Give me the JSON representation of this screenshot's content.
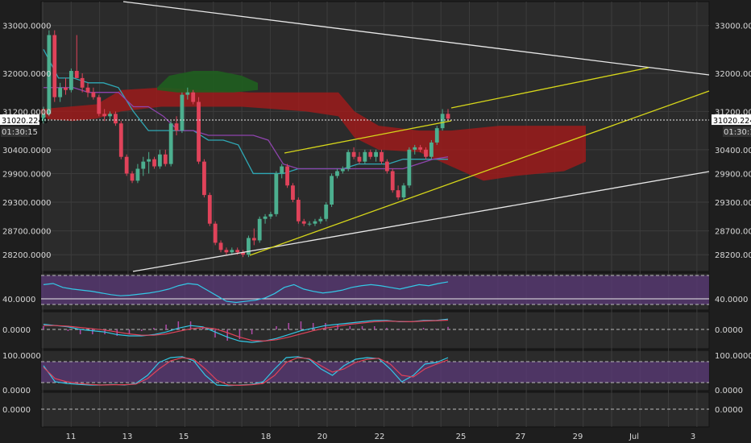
{
  "colors": {
    "background": "#2b2b2b",
    "frame": "#1e1e1e",
    "grid": "#3c3c3c",
    "bull_candle": "#4caf8f",
    "bear_candle": "#e0435a",
    "cloud_bear": "#9c1b1b",
    "cloud_bull": "#1f5e1f",
    "kijun": "#2fa8b5",
    "tenkan": "#8e44ad",
    "trend_white": "#e8e8e8",
    "trend_yellow": "#d6d61a",
    "rsi_line": "#33c8e6",
    "indicator_band": "#5b3a78",
    "stoch_k": "#33c8e6",
    "stoch_d": "#e0435a",
    "macd_line": "#33c8e6",
    "macd_signal": "#e0435a",
    "macd_hist": "#b04aa8"
  },
  "price_axis": {
    "labels_left": [
      "33000.0000",
      "32000.0000",
      "31200.0000",
      "30400.0000",
      "29900.0000",
      "29300.0000",
      "28700.0000",
      "28200.0000"
    ],
    "labels_right": [
      "33000.0000",
      "32000.0000",
      "31200.0000",
      "30400.0000",
      "29900.0000",
      "29300.0000",
      "28700.0000",
      "28200.0000"
    ],
    "current_price_label": "31020.2240",
    "countdown_label": "01:30:15"
  },
  "indicator_axes": {
    "rsi_label_left": "40.0000",
    "rsi_label_right": "40.0000",
    "macd_label_left": "0.0000",
    "macd_label_right": "0.0000",
    "stoch_top_left": "100.0000",
    "stoch_top_right": "100.0000",
    "stoch_bottom_left": "0.0000",
    "stoch_bottom_right": "0.0000",
    "blank_label_left": "0.0000",
    "blank_label_right": "0.0000"
  },
  "date_axis": {
    "labels": [
      "11",
      "13",
      "15",
      "18",
      "20",
      "22",
      "25",
      "27",
      "29",
      "Jul",
      "3"
    ]
  },
  "chart_data": {
    "type": "candlestick",
    "ylim": [
      27900,
      33400
    ],
    "current_price": 31020.224,
    "candles": [
      [
        31000,
        31300,
        30950,
        31150
      ],
      [
        31150,
        32900,
        31100,
        32800
      ],
      [
        32800,
        32900,
        31400,
        31500
      ],
      [
        31500,
        31800,
        31400,
        31700
      ],
      [
        31700,
        31900,
        31550,
        31650
      ],
      [
        31650,
        32100,
        31600,
        32050
      ],
      [
        32050,
        32800,
        31900,
        31900
      ],
      [
        31900,
        32000,
        31600,
        31700
      ],
      [
        31700,
        31800,
        31500,
        31600
      ],
      [
        31600,
        31700,
        31450,
        31500
      ],
      [
        31500,
        31550,
        31100,
        31150
      ],
      [
        31150,
        31250,
        31000,
        31100
      ],
      [
        31100,
        31200,
        31000,
        31150
      ],
      [
        31150,
        31200,
        30900,
        30950
      ],
      [
        30950,
        31000,
        30200,
        30250
      ],
      [
        30250,
        30300,
        29850,
        29900
      ],
      [
        29900,
        29950,
        29700,
        29750
      ],
      [
        29750,
        30100,
        29700,
        30000
      ],
      [
        30000,
        30250,
        29850,
        30150
      ],
      [
        30150,
        30350,
        29900,
        30200
      ],
      [
        30200,
        30250,
        30000,
        30050
      ],
      [
        30050,
        30400,
        30000,
        30300
      ],
      [
        30300,
        30400,
        30050,
        30100
      ],
      [
        30100,
        31000,
        30050,
        30950
      ],
      [
        30950,
        31100,
        30700,
        30800
      ],
      [
        30800,
        31600,
        30750,
        31550
      ],
      [
        31550,
        31700,
        31450,
        31600
      ],
      [
        31600,
        31650,
        31350,
        31400
      ],
      [
        31400,
        31500,
        30100,
        30150
      ],
      [
        30150,
        30200,
        29400,
        29450
      ],
      [
        29450,
        29500,
        28800,
        28850
      ],
      [
        28850,
        28900,
        28400,
        28450
      ],
      [
        28450,
        28500,
        28250,
        28300
      ],
      [
        28300,
        28350,
        28200,
        28250
      ],
      [
        28250,
        28350,
        28200,
        28300
      ],
      [
        28300,
        28350,
        28200,
        28250
      ],
      [
        28250,
        28300,
        28150,
        28200
      ],
      [
        28200,
        28600,
        28150,
        28550
      ],
      [
        28550,
        28750,
        28400,
        28500
      ],
      [
        28500,
        29000,
        28450,
        28950
      ],
      [
        28950,
        29050,
        28850,
        29000
      ],
      [
        29000,
        29100,
        28950,
        29050
      ],
      [
        29050,
        29950,
        29000,
        29900
      ],
      [
        29900,
        30100,
        29800,
        30050
      ],
      [
        30050,
        30100,
        29600,
        29650
      ],
      [
        29650,
        29700,
        29300,
        29350
      ],
      [
        29350,
        29400,
        28850,
        28900
      ],
      [
        28900,
        28950,
        28800,
        28850
      ],
      [
        28850,
        28900,
        28800,
        28850
      ],
      [
        28850,
        28950,
        28800,
        28900
      ],
      [
        28900,
        29000,
        28850,
        28950
      ],
      [
        28950,
        29300,
        28900,
        29250
      ],
      [
        29250,
        29900,
        29200,
        29850
      ],
      [
        29850,
        30000,
        29800,
        29950
      ],
      [
        29950,
        30050,
        29900,
        30000
      ],
      [
        30000,
        30400,
        29950,
        30350
      ],
      [
        30350,
        30450,
        30200,
        30250
      ],
      [
        30250,
        30350,
        30100,
        30150
      ],
      [
        30150,
        30400,
        30100,
        30350
      ],
      [
        30350,
        30400,
        30200,
        30250
      ],
      [
        30250,
        30400,
        30150,
        30350
      ],
      [
        30350,
        30400,
        30100,
        30150
      ],
      [
        30150,
        30200,
        29900,
        29950
      ],
      [
        29950,
        30000,
        29500,
        29550
      ],
      [
        29550,
        29650,
        29350,
        29400
      ],
      [
        29400,
        29700,
        29350,
        29650
      ],
      [
        29650,
        30450,
        29600,
        30400
      ],
      [
        30400,
        30500,
        30300,
        30450
      ],
      [
        30450,
        30500,
        30350,
        30400
      ],
      [
        30400,
        30450,
        30200,
        30250
      ],
      [
        30250,
        30600,
        30200,
        30550
      ],
      [
        30550,
        30900,
        30500,
        30850
      ],
      [
        30850,
        31250,
        30800,
        31150
      ],
      [
        31150,
        31250,
        31000,
        31050
      ]
    ],
    "kijun": [
      32500,
      31900,
      31900,
      31800,
      31800,
      31700,
      31200,
      30800,
      30800,
      30800,
      30800,
      30600,
      30600,
      30500,
      29900,
      29900,
      29900,
      30000,
      30000,
      30000,
      30000,
      30100,
      30100,
      30100,
      30200,
      30200,
      30200,
      30200
    ],
    "tenkan": [
      31700,
      31700,
      31700,
      31600,
      31600,
      31600,
      31300,
      31300,
      31100,
      30800,
      30800,
      30700,
      30700,
      30700,
      30700,
      30600,
      30100,
      30000,
      30000,
      30000,
      30000,
      30000,
      30000,
      30000,
      30000,
      30100,
      30200,
      30250
    ],
    "rsi": [
      60,
      62,
      55,
      52,
      50,
      48,
      45,
      42,
      40,
      41,
      43,
      45,
      48,
      52,
      58,
      62,
      60,
      50,
      40,
      30,
      28,
      30,
      32,
      36,
      44,
      55,
      60,
      52,
      48,
      45,
      47,
      50,
      55,
      58,
      60,
      58,
      55,
      52,
      56,
      60,
      58,
      62,
      65
    ],
    "stoch_k": [
      70,
      20,
      15,
      12,
      10,
      10,
      12,
      10,
      15,
      40,
      80,
      95,
      98,
      85,
      40,
      10,
      8,
      10,
      12,
      20,
      60,
      95,
      98,
      90,
      60,
      40,
      70,
      90,
      95,
      92,
      60,
      20,
      40,
      75,
      80,
      95
    ],
    "stoch_d": [
      65,
      30,
      20,
      15,
      12,
      10,
      11,
      11,
      13,
      30,
      60,
      85,
      95,
      90,
      60,
      25,
      10,
      9,
      11,
      15,
      40,
      80,
      95,
      92,
      70,
      50,
      60,
      80,
      90,
      93,
      75,
      40,
      35,
      60,
      75,
      88
    ],
    "macd": [
      0.4,
      0.3,
      0.2,
      0.0,
      -0.1,
      -0.2,
      -0.4,
      -0.5,
      -0.5,
      -0.4,
      -0.2,
      0.1,
      0.3,
      0.2,
      -0.2,
      -0.6,
      -0.9,
      -1.0,
      -0.9,
      -0.7,
      -0.4,
      -0.1,
      0.1,
      0.3,
      0.4,
      0.5,
      0.6,
      0.7,
      0.7,
      0.6,
      0.6,
      0.7,
      0.7,
      0.8
    ],
    "macd_signal": [
      0.3,
      0.3,
      0.25,
      0.15,
      0.05,
      -0.05,
      -0.2,
      -0.35,
      -0.45,
      -0.45,
      -0.35,
      -0.15,
      0.05,
      0.15,
      0.05,
      -0.25,
      -0.6,
      -0.85,
      -0.9,
      -0.8,
      -0.6,
      -0.35,
      -0.1,
      0.1,
      0.25,
      0.4,
      0.5,
      0.6,
      0.65,
      0.62,
      0.6,
      0.65,
      0.68,
      0.72
    ]
  }
}
